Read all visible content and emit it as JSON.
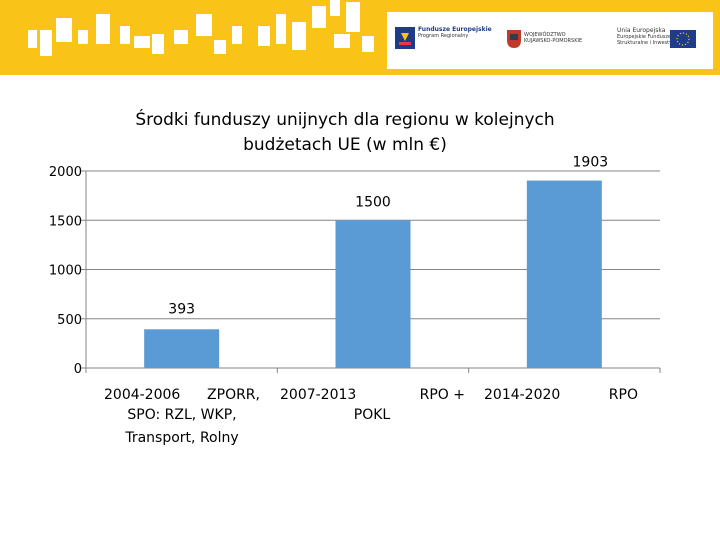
{
  "logos": {
    "fe_title": "Fundusze Europejskie",
    "fe_sub": "Program Regionalny",
    "region_line1": "WOJEWÓDZTWO",
    "region_line2": "KUJAWSKO-POMORSKIE",
    "eu_title": "Unia Europejska",
    "eu_line1": "Europejskie Fundusze",
    "eu_line2": "Strukturalne i Inwestycyjne"
  },
  "colors": {
    "banner": "#f9c417",
    "bar": "#5b9bd5",
    "grid": "#868686"
  },
  "chart_data": {
    "type": "bar",
    "title": "Środki funduszy unijnych dla regionu w kolejnych budżetach UE (w mln €)",
    "categories": [
      "2004-2006 ZPORR, SPO: RZL, WKP, Transport, Rolny",
      "2007-2013 RPO + POKL",
      "2014-2020 RPO"
    ],
    "category_labels": [
      {
        "period": "2004-2006",
        "program": "ZPORR,",
        "line2": "SPO: RZL, WKP,",
        "line3": "Transport, Rolny"
      },
      {
        "period": "2007-2013",
        "program": "RPO +",
        "line2": "POKL"
      },
      {
        "period": "2014-2020",
        "program": "RPO"
      }
    ],
    "values": [
      393,
      1500,
      1903
    ],
    "data_labels": [
      "393",
      "1500",
      "1903"
    ],
    "ylim": [
      0,
      2000
    ],
    "yticks": [
      0,
      500,
      1000,
      1500,
      2000
    ],
    "grid": true,
    "xlabel": "",
    "ylabel": ""
  }
}
